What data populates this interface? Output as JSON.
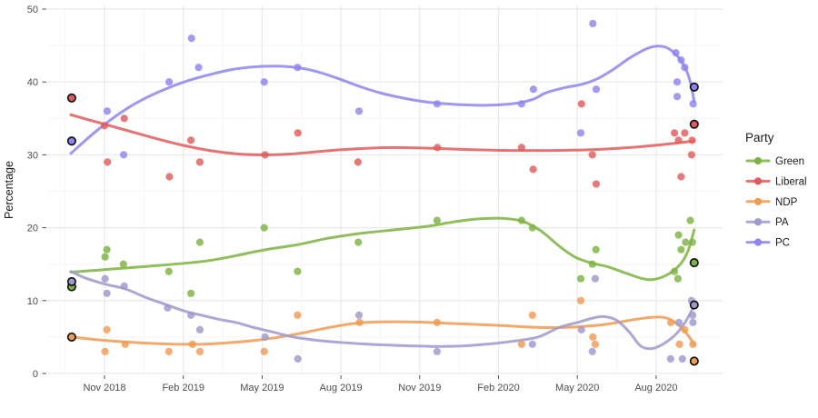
{
  "figure": {
    "background": "#ffffff"
  },
  "chart_data": {
    "type": "scatter",
    "subtype": "scatter points with loess smooth lines, election results as black-ringed points",
    "title": "",
    "xlabel": "",
    "ylabel": "Percentage",
    "ylim": [
      0,
      50
    ],
    "y_ticks": [
      0,
      10,
      20,
      30,
      40,
      50
    ],
    "x_unit": "months since 2018-09-01",
    "x_ticks": [
      {
        "pos": 2,
        "label": "Nov 2018"
      },
      {
        "pos": 5,
        "label": "Feb 2019"
      },
      {
        "pos": 8,
        "label": "May 2019"
      },
      {
        "pos": 11,
        "label": "Aug 2019"
      },
      {
        "pos": 14,
        "label": "Nov 2019"
      },
      {
        "pos": 17,
        "label": "Feb 2020"
      },
      {
        "pos": 20,
        "label": "May 2020"
      },
      {
        "pos": 23,
        "label": "Aug 2020"
      }
    ],
    "grid": true,
    "legend": {
      "title": "Party",
      "position": "right"
    },
    "colors": {
      "major_grid": "#e9e9e9",
      "minor_grid": "#f5f5f5",
      "tick_text": "#4d4d4d",
      "election_ring": "#111111"
    },
    "series": [
      {
        "name": "Green",
        "color": "#7CB342",
        "points": [
          [
            2.02,
            16
          ],
          [
            2.09,
            17
          ],
          [
            2.72,
            15
          ],
          [
            4.45,
            14
          ],
          [
            5.29,
            11
          ],
          [
            5.63,
            18
          ],
          [
            8.08,
            20
          ],
          [
            9.35,
            14
          ],
          [
            11.66,
            18
          ],
          [
            14.66,
            21
          ],
          [
            17.88,
            21
          ],
          [
            18.29,
            20
          ],
          [
            20.13,
            13
          ],
          [
            20.57,
            15
          ],
          [
            20.71,
            17
          ],
          [
            23.7,
            14
          ],
          [
            23.83,
            13
          ],
          [
            23.85,
            19
          ],
          [
            23.95,
            17
          ],
          [
            24.12,
            18
          ],
          [
            24.3,
            21
          ],
          [
            24.38,
            18
          ]
        ],
        "election_points": [
          [
            0.75,
            11.9
          ],
          [
            24.45,
            15.2
          ]
        ],
        "trend": [
          [
            0.72,
            13.9
          ],
          [
            2,
            14.25
          ],
          [
            4,
            14.8
          ],
          [
            6,
            15.5
          ],
          [
            8,
            16.9
          ],
          [
            9.4,
            17.7
          ],
          [
            10.5,
            18.55
          ],
          [
            11.7,
            19.2
          ],
          [
            13,
            19.7
          ],
          [
            14.3,
            20.2
          ],
          [
            15.3,
            20.8
          ],
          [
            16.2,
            21.2
          ],
          [
            17.1,
            21.3
          ],
          [
            17.9,
            20.9
          ],
          [
            18.6,
            19.6
          ],
          [
            19.3,
            17.5
          ],
          [
            19.9,
            16.0
          ],
          [
            20.5,
            15.2
          ],
          [
            21.2,
            14.6
          ],
          [
            21.9,
            13.7
          ],
          [
            22.5,
            13.0
          ],
          [
            22.9,
            12.9
          ],
          [
            23.4,
            13.5
          ],
          [
            23.9,
            14.9
          ],
          [
            24.2,
            16.7
          ],
          [
            24.45,
            19.7
          ]
        ]
      },
      {
        "name": "Liberal",
        "color": "#E05B5B",
        "points": [
          [
            2.0,
            34
          ],
          [
            2.11,
            29
          ],
          [
            2.75,
            35
          ],
          [
            4.47,
            27
          ],
          [
            5.29,
            32
          ],
          [
            5.63,
            29
          ],
          [
            8.11,
            30
          ],
          [
            9.36,
            33
          ],
          [
            11.65,
            29
          ],
          [
            14.67,
            31
          ],
          [
            17.88,
            31
          ],
          [
            18.32,
            28
          ],
          [
            20.16,
            37
          ],
          [
            20.57,
            30
          ],
          [
            20.72,
            26
          ],
          [
            23.7,
            33
          ],
          [
            23.85,
            32
          ],
          [
            23.95,
            27
          ],
          [
            24.09,
            33
          ],
          [
            24.35,
            30
          ],
          [
            24.37,
            32
          ]
        ],
        "election_points": [
          [
            0.75,
            37.8
          ],
          [
            24.45,
            34.2
          ]
        ],
        "trend": [
          [
            0.72,
            35.5
          ],
          [
            1.8,
            34.4
          ],
          [
            2.9,
            33.3
          ],
          [
            4.0,
            32.2
          ],
          [
            5.0,
            31.3
          ],
          [
            6.0,
            30.6
          ],
          [
            7.0,
            30.15
          ],
          [
            8.0,
            30.0
          ],
          [
            9.0,
            30.1
          ],
          [
            10.0,
            30.4
          ],
          [
            11.0,
            30.7
          ],
          [
            12.0,
            30.9
          ],
          [
            13.0,
            31.0
          ],
          [
            14.5,
            30.9
          ],
          [
            16.0,
            30.7
          ],
          [
            17.5,
            30.6
          ],
          [
            19.0,
            30.6
          ],
          [
            20.5,
            30.7
          ],
          [
            22.0,
            31.0
          ],
          [
            23.2,
            31.4
          ],
          [
            24.45,
            31.9
          ]
        ]
      },
      {
        "name": "NDP",
        "color": "#F09A52",
        "points": [
          [
            2.02,
            3
          ],
          [
            2.09,
            6
          ],
          [
            2.79,
            4
          ],
          [
            4.45,
            3
          ],
          [
            5.35,
            4
          ],
          [
            5.63,
            3
          ],
          [
            8.08,
            3
          ],
          [
            9.35,
            8
          ],
          [
            11.71,
            7
          ],
          [
            14.66,
            7
          ],
          [
            17.88,
            4
          ],
          [
            18.29,
            8
          ],
          [
            20.13,
            10
          ],
          [
            20.59,
            5
          ],
          [
            20.68,
            4
          ],
          [
            23.56,
            7
          ],
          [
            23.89,
            4
          ],
          [
            24.09,
            6
          ],
          [
            24.4,
            4
          ]
        ],
        "election_points": [
          [
            0.75,
            5.0
          ],
          [
            24.45,
            1.7
          ]
        ],
        "trend": [
          [
            0.72,
            5.0
          ],
          [
            1.8,
            4.6
          ],
          [
            2.9,
            4.3
          ],
          [
            4.0,
            4.1
          ],
          [
            5.0,
            4.0
          ],
          [
            6.0,
            4.05
          ],
          [
            7.0,
            4.3
          ],
          [
            8.0,
            4.65
          ],
          [
            9.0,
            5.2
          ],
          [
            10.0,
            5.9
          ],
          [
            11.0,
            6.6
          ],
          [
            11.9,
            7.0
          ],
          [
            13.0,
            7.1
          ],
          [
            14.0,
            7.05
          ],
          [
            15.0,
            6.9
          ],
          [
            16.0,
            6.75
          ],
          [
            17.0,
            6.6
          ],
          [
            18.0,
            6.4
          ],
          [
            19.0,
            6.3
          ],
          [
            20.0,
            6.4
          ],
          [
            21.0,
            6.7
          ],
          [
            22.0,
            7.3
          ],
          [
            22.8,
            7.7
          ],
          [
            23.4,
            7.6
          ],
          [
            23.9,
            6.5
          ],
          [
            24.2,
            5.3
          ],
          [
            24.45,
            4.0
          ]
        ]
      },
      {
        "name": "PA",
        "color": "#9D99CC",
        "points": [
          [
            2.02,
            13
          ],
          [
            2.09,
            11
          ],
          [
            2.75,
            12
          ],
          [
            4.4,
            9
          ],
          [
            5.29,
            8
          ],
          [
            5.63,
            6
          ],
          [
            8.11,
            5
          ],
          [
            9.36,
            2
          ],
          [
            11.69,
            8
          ],
          [
            14.66,
            3
          ],
          [
            18.29,
            4
          ],
          [
            20.16,
            6
          ],
          [
            20.57,
            3
          ],
          [
            20.68,
            13
          ],
          [
            23.55,
            2
          ],
          [
            23.87,
            7
          ],
          [
            24.0,
            2
          ],
          [
            24.35,
            10
          ],
          [
            24.39,
            8
          ],
          [
            24.4,
            7
          ]
        ],
        "election_points": [
          [
            0.75,
            12.6
          ],
          [
            24.45,
            9.4
          ]
        ],
        "trend": [
          [
            0.72,
            14.0
          ],
          [
            1.3,
            13.05
          ],
          [
            2.1,
            12.2
          ],
          [
            2.8,
            11.6
          ],
          [
            3.6,
            10.4
          ],
          [
            4.3,
            9.5
          ],
          [
            5.1,
            8.5
          ],
          [
            5.8,
            7.9
          ],
          [
            6.4,
            7.4
          ],
          [
            7.0,
            7.0
          ],
          [
            7.7,
            6.3
          ],
          [
            8.4,
            5.7
          ],
          [
            9.2,
            5.0
          ],
          [
            10.2,
            4.5
          ],
          [
            11.2,
            4.2
          ],
          [
            12.1,
            4.0
          ],
          [
            13.1,
            3.85
          ],
          [
            14.1,
            3.75
          ],
          [
            14.7,
            3.7
          ],
          [
            15.5,
            3.75
          ],
          [
            16.5,
            4.0
          ],
          [
            17.5,
            4.4
          ],
          [
            18.5,
            5.0
          ],
          [
            19.3,
            6.3
          ],
          [
            20.0,
            7.0
          ],
          [
            20.6,
            7.6
          ],
          [
            21.0,
            7.8
          ],
          [
            21.5,
            7.3
          ],
          [
            22.0,
            5.6
          ],
          [
            22.4,
            3.8
          ],
          [
            22.8,
            3.4
          ],
          [
            23.2,
            3.9
          ],
          [
            23.7,
            5.2
          ],
          [
            24.1,
            7.0
          ],
          [
            24.45,
            9.3
          ]
        ]
      },
      {
        "name": "PC",
        "color": "#8C85EF",
        "points": [
          [
            2.1,
            36
          ],
          [
            2.73,
            30
          ],
          [
            4.46,
            40
          ],
          [
            5.31,
            46
          ],
          [
            5.58,
            42
          ],
          [
            8.08,
            40
          ],
          [
            9.35,
            42
          ],
          [
            11.69,
            36
          ],
          [
            14.66,
            37
          ],
          [
            17.88,
            37
          ],
          [
            18.33,
            39
          ],
          [
            20.13,
            33
          ],
          [
            20.59,
            48
          ],
          [
            20.72,
            39
          ],
          [
            23.75,
            44
          ],
          [
            23.8,
            40
          ],
          [
            23.8,
            38
          ],
          [
            23.95,
            43
          ],
          [
            24.09,
            42
          ],
          [
            24.41,
            37
          ]
        ],
        "election_points": [
          [
            0.75,
            31.9
          ],
          [
            24.45,
            39.3
          ]
        ],
        "trend": [
          [
            0.72,
            30.2
          ],
          [
            1.6,
            33.0
          ],
          [
            2.5,
            35.5
          ],
          [
            3.4,
            37.5
          ],
          [
            4.3,
            39.0
          ],
          [
            5.2,
            40.2
          ],
          [
            6.1,
            41.1
          ],
          [
            7.0,
            41.8
          ],
          [
            8.0,
            42.15
          ],
          [
            9.0,
            42.1
          ],
          [
            9.9,
            41.6
          ],
          [
            10.8,
            40.6
          ],
          [
            11.7,
            39.4
          ],
          [
            12.6,
            38.4
          ],
          [
            13.5,
            37.7
          ],
          [
            14.4,
            37.2
          ],
          [
            15.5,
            36.9
          ],
          [
            16.5,
            36.8
          ],
          [
            17.5,
            37.0
          ],
          [
            18.3,
            37.6
          ],
          [
            18.8,
            38.5
          ],
          [
            19.5,
            39.2
          ],
          [
            20.2,
            39.7
          ],
          [
            20.8,
            40.5
          ],
          [
            21.4,
            41.8
          ],
          [
            22.0,
            43.3
          ],
          [
            22.6,
            44.5
          ],
          [
            23.0,
            44.9
          ],
          [
            23.4,
            44.7
          ],
          [
            23.8,
            43.6
          ],
          [
            24.1,
            42.0
          ],
          [
            24.3,
            40.0
          ],
          [
            24.45,
            37.3
          ]
        ]
      }
    ]
  }
}
